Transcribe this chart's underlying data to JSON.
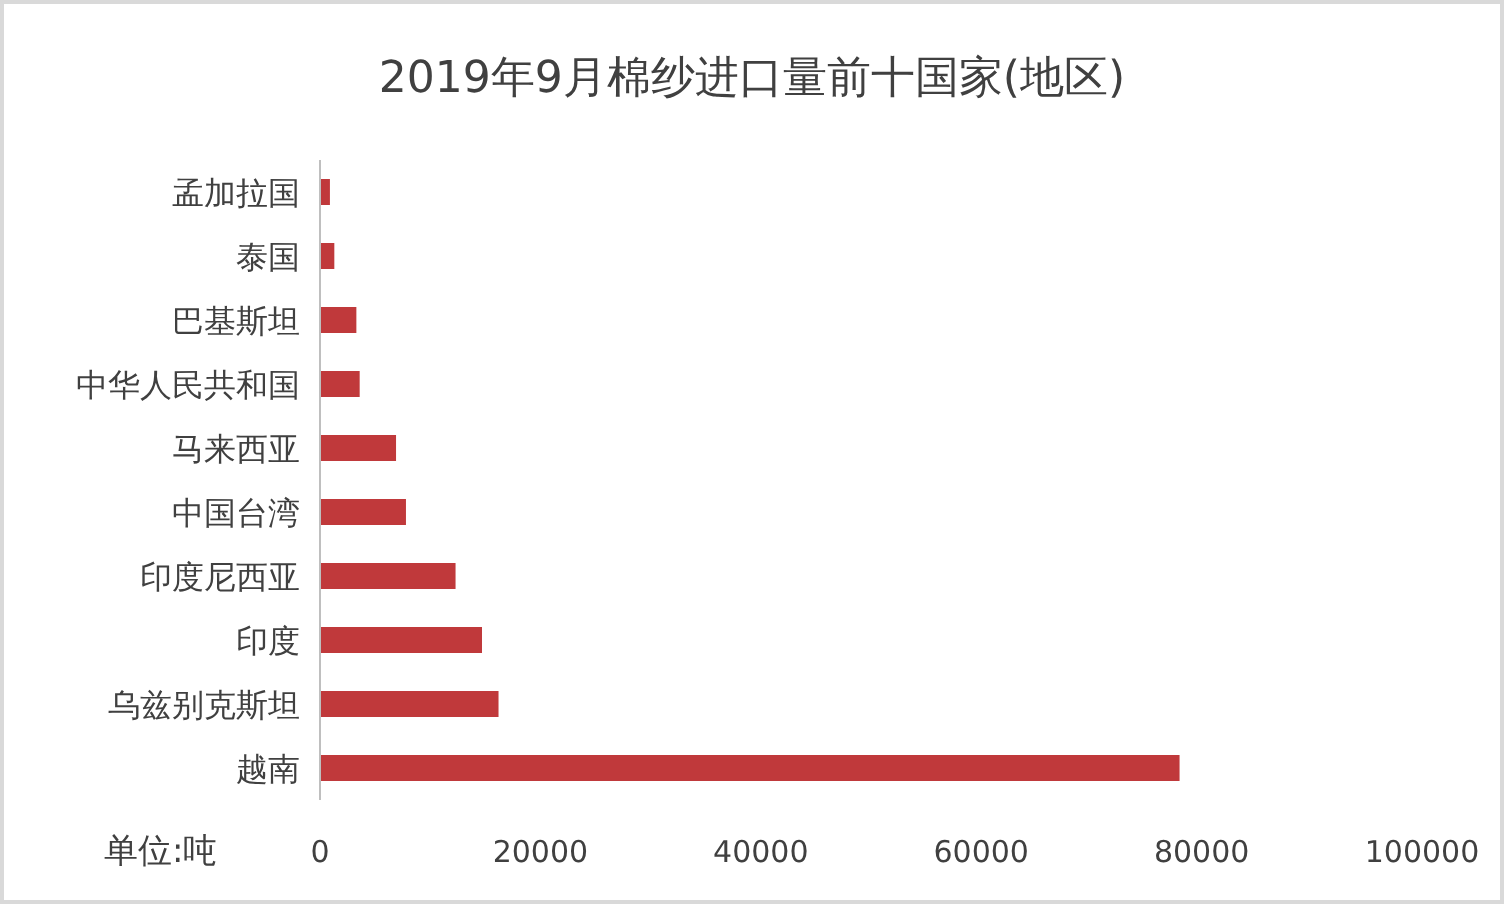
{
  "chart_data": {
    "type": "bar",
    "orientation": "horizontal",
    "title": "2019年9月棉纱进口量前十国家(地区)",
    "categories": [
      "孟加拉国",
      "泰国",
      "巴基斯坦",
      "中华人民共和国",
      "马来西亚",
      "中国台湾",
      "印度尼西亚",
      "印度",
      "乌兹别克斯坦",
      "越南"
    ],
    "values": [
      900,
      1300,
      3300,
      3600,
      6900,
      7800,
      12300,
      14700,
      16200,
      78000
    ],
    "color": "#c0393b",
    "xlim": [
      0,
      100000
    ],
    "xticks": [
      0,
      20000,
      40000,
      60000,
      80000,
      100000
    ],
    "annotations": [
      "单位:吨"
    ]
  }
}
